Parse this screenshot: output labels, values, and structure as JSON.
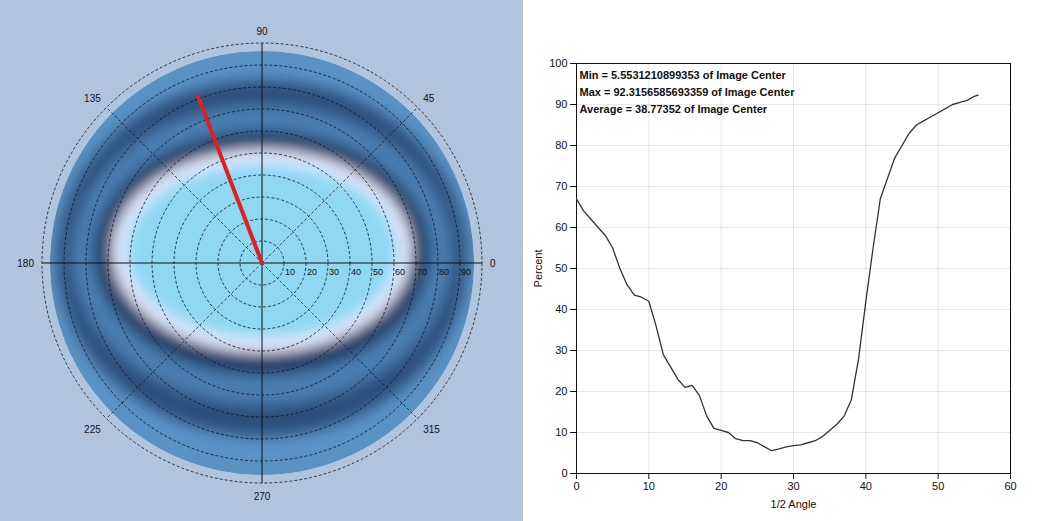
{
  "chart_data": [
    {
      "type": "polar",
      "rlim": [
        0,
        100
      ],
      "rticks": [
        10,
        20,
        30,
        40,
        50,
        60,
        70,
        80,
        90
      ],
      "angle_ticks": [
        0,
        45,
        90,
        135,
        180,
        225,
        270,
        315
      ],
      "profile": {
        "angle": 111,
        "radius": 81
      },
      "color": "#e02020"
    },
    {
      "type": "line",
      "annotations": [
        "Min = 5.5531210899353 of Image Center",
        "Max = 92.3156585693359 of Image Center",
        "Average = 38.77352 of Image Center"
      ],
      "x_label": "1/2 Angle",
      "y_label": "Percent",
      "x": [
        0,
        1,
        2,
        3,
        4,
        5,
        6,
        7,
        8,
        9,
        10,
        11,
        12,
        13,
        14,
        15,
        16,
        17,
        18,
        19,
        20,
        21,
        22,
        23,
        24,
        25,
        26,
        27,
        28,
        29,
        30,
        31,
        32,
        33,
        34,
        35,
        36,
        37,
        38,
        39,
        40,
        41,
        42,
        43,
        44,
        45,
        46,
        47,
        48,
        49,
        50,
        51,
        52,
        53,
        54,
        55,
        55.5
      ],
      "values": [
        67,
        64,
        62,
        60,
        58,
        55,
        50,
        46,
        43.5,
        43,
        42,
        36,
        29,
        26,
        23,
        21,
        21.5,
        19,
        14,
        11,
        10.5,
        10,
        8.5,
        8,
        8,
        7.5,
        6.5,
        5.55,
        6,
        6.5,
        6.8,
        7,
        7.5,
        8,
        9,
        10.5,
        12,
        14,
        18,
        28,
        42,
        55,
        67,
        72,
        77,
        80,
        83,
        85,
        86,
        87,
        88,
        89,
        90,
        90.5,
        91,
        92,
        92.3
      ],
      "color": "#333333",
      "xlim": [
        0,
        60
      ],
      "xticks": [
        0,
        10,
        20,
        30,
        40,
        50,
        60
      ],
      "ylim": [
        0,
        100
      ],
      "yticks": [
        0,
        10,
        20,
        30,
        40,
        50,
        60,
        70,
        80,
        90,
        100
      ],
      "grid": true
    }
  ]
}
